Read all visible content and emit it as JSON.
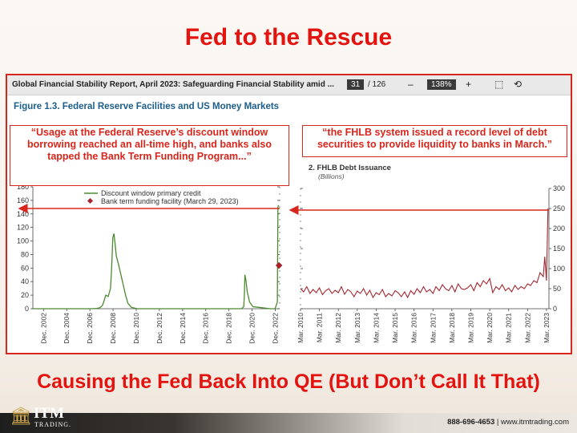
{
  "slide": {
    "title": "Fed to the Rescue",
    "subtitle": "Causing the Fed Back Into QE (But Don’t Call It That)"
  },
  "viewer": {
    "doc_title": "Global Financial Stability Report, April 2023: Safeguarding Financial Stability amid ...",
    "page_current": "31",
    "page_total": "/ 126",
    "zoom_out": "–",
    "zoom_level": "138%",
    "zoom_in": "+"
  },
  "figure_title": "Figure 1.3. Federal Reserve Facilities and US Money Markets",
  "callouts": {
    "left": "“Usage at the Federal Reserve’s discount window borrowing reached an all-time high, and banks also tapped the Bank Term Funding Program...”",
    "right": "“the FHLB system issued a record level of debt securities to provide liquidity to banks in March.”"
  },
  "footer": {
    "logo_text": "ITM",
    "logo_subtext": "TRADING.",
    "phone": "888-696-4653",
    "separator": "|",
    "website": "www.itmtrading.com"
  },
  "colors": {
    "accent_red": "#e3140f",
    "line_green": "#4a8a2e",
    "line_maroon": "#a3262e",
    "marker": "#a8232a"
  },
  "chart_data": [
    {
      "type": "line",
      "legend": [
        "Discount window primary credit",
        "Bank term funding facility (March 29, 2023)"
      ],
      "yticks": [
        0,
        20,
        40,
        60,
        80,
        100,
        120,
        140,
        160,
        180
      ],
      "ylim": [
        0,
        180
      ],
      "xlim": [
        2002.0,
        2023.3
      ],
      "x_tick_labels": [
        "Dec. 2002",
        "Dec. 2004",
        "Dec. 2006",
        "Dec. 2008",
        "Dec. 2010",
        "Dec. 2012",
        "Dec. 2014",
        "Dec. 2016",
        "Dec. 2018",
        "Dec. 2020",
        "Dec. 2022"
      ],
      "x_tick_values": [
        2002.92,
        2004.92,
        2006.92,
        2008.92,
        2010.92,
        2012.92,
        2014.92,
        2016.92,
        2018.92,
        2020.92,
        2022.92
      ],
      "series": [
        {
          "name": "Discount window primary credit",
          "x": [
            2002.0,
            2003.0,
            2004.0,
            2005.0,
            2006.0,
            2007.0,
            2007.5,
            2007.7,
            2007.9,
            2008.0,
            2008.1,
            2008.2,
            2008.3,
            2008.5,
            2008.7,
            2008.8,
            2008.9,
            2009.0,
            2009.1,
            2009.2,
            2009.4,
            2009.6,
            2009.8,
            2010.0,
            2010.2,
            2010.5,
            2011.0,
            2013.0,
            2015.0,
            2017.0,
            2019.0,
            2020.0,
            2020.2,
            2020.25,
            2020.3,
            2020.4,
            2020.5,
            2020.7,
            2021.0,
            2021.5,
            2022.0,
            2022.5,
            2022.9,
            2023.0,
            2023.1,
            2023.15,
            2023.2
          ],
          "values": [
            0,
            0,
            0,
            0,
            0,
            0,
            0.5,
            1,
            3,
            5,
            9,
            15,
            20,
            18,
            30,
            60,
            105,
            111,
            95,
            78,
            65,
            50,
            35,
            20,
            8,
            2,
            0,
            0,
            0,
            0,
            0,
            0,
            3,
            20,
            50,
            40,
            25,
            10,
            3,
            2,
            1,
            0,
            0,
            5,
            10,
            150,
            153
          ]
        },
        {
          "name": "Bank term funding facility (March 29, 2023)",
          "x": [
            2023.24
          ],
          "values": [
            64
          ]
        }
      ]
    },
    {
      "type": "line",
      "title": "2. FHLB Debt Issuance",
      "subtitle": "(Billions)",
      "yticks": [
        0,
        50,
        100,
        150,
        200,
        250,
        300
      ],
      "ylim": [
        0,
        300
      ],
      "xlim": [
        2010.17,
        2023.3
      ],
      "x_tick_labels": [
        "Mar. 2010",
        "Mar. 2011",
        "Mar. 2012",
        "Mar. 2013",
        "Mar. 2014",
        "Mar. 2015",
        "Mar. 2016",
        "Mar. 2017",
        "Mar. 2018",
        "Mar. 2019",
        "Mar. 2020",
        "Mar. 2021",
        "Mar. 2022",
        "Mar. 2023"
      ],
      "x_tick_values": [
        2010.17,
        2011.17,
        2012.17,
        2013.17,
        2014.17,
        2015.17,
        2016.17,
        2017.17,
        2018.17,
        2019.17,
        2020.17,
        2021.17,
        2022.17,
        2023.17
      ],
      "series": [
        {
          "name": "FHLB debt issuance",
          "x": [
            2010.17,
            2010.33,
            2010.5,
            2010.67,
            2010.83,
            2011.0,
            2011.17,
            2011.33,
            2011.5,
            2011.67,
            2011.83,
            2012.0,
            2012.17,
            2012.33,
            2012.5,
            2012.67,
            2012.83,
            2013.0,
            2013.17,
            2013.33,
            2013.5,
            2013.67,
            2013.83,
            2014.0,
            2014.17,
            2014.33,
            2014.5,
            2014.67,
            2014.83,
            2015.0,
            2015.17,
            2015.33,
            2015.5,
            2015.67,
            2015.83,
            2016.0,
            2016.17,
            2016.33,
            2016.5,
            2016.67,
            2016.83,
            2017.0,
            2017.17,
            2017.33,
            2017.5,
            2017.67,
            2017.83,
            2018.0,
            2018.17,
            2018.33,
            2018.5,
            2018.67,
            2018.83,
            2019.0,
            2019.17,
            2019.33,
            2019.5,
            2019.67,
            2019.83,
            2020.0,
            2020.17,
            2020.33,
            2020.5,
            2020.67,
            2020.83,
            2021.0,
            2021.17,
            2021.33,
            2021.5,
            2021.67,
            2021.83,
            2022.0,
            2022.17,
            2022.33,
            2022.5,
            2022.67,
            2022.83,
            2023.0,
            2023.08,
            2023.17,
            2023.25
          ],
          "values": [
            50,
            42,
            55,
            38,
            48,
            40,
            52,
            35,
            45,
            50,
            38,
            46,
            40,
            55,
            36,
            48,
            42,
            30,
            44,
            38,
            50,
            34,
            46,
            28,
            40,
            35,
            48,
            30,
            38,
            32,
            45,
            40,
            30,
            42,
            28,
            45,
            36,
            50,
            40,
            55,
            42,
            48,
            38,
            55,
            45,
            60,
            50,
            45,
            58,
            42,
            62,
            50,
            48,
            52,
            60,
            45,
            65,
            55,
            70,
            62,
            75,
            40,
            55,
            48,
            60,
            45,
            52,
            42,
            58,
            48,
            55,
            50,
            62,
            58,
            70,
            65,
            90,
            80,
            130,
            70,
            250
          ]
        }
      ]
    }
  ]
}
